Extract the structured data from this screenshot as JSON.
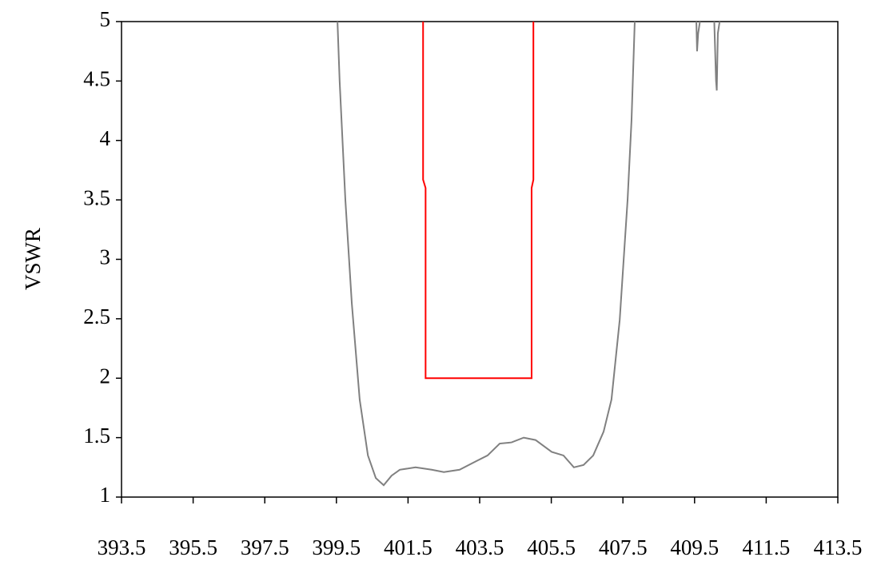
{
  "chart_data": {
    "type": "line",
    "y_label": "VSWR",
    "xlim": [
      393.5,
      413.5
    ],
    "xticks": [
      393.5,
      395.5,
      397.5,
      399.5,
      401.5,
      403.5,
      405.5,
      407.5,
      409.5,
      411.5,
      413.5
    ],
    "ylim": [
      1,
      5
    ],
    "yticks": [
      1,
      1.5,
      2,
      2.5,
      3,
      3.5,
      4,
      4.5,
      5
    ],
    "series": [
      {
        "color": "#808080",
        "x": [
          399.53,
          399.59,
          399.75,
          399.93,
          400.15,
          400.38,
          400.6,
          400.82,
          401.04,
          401.27,
          401.71,
          402.16,
          402.5,
          402.94,
          403.39,
          403.72,
          404.06,
          404.39,
          404.73,
          405.06,
          405.51,
          405.84,
          406.13,
          406.4,
          406.67,
          406.96,
          407.18,
          407.41,
          407.63,
          407.74,
          407.83,
          408.5,
          409.55,
          409.57,
          409.6,
          409.65,
          409.9,
          410.05,
          410.1,
          410.12,
          410.15,
          410.2
        ],
        "values": [
          5,
          4.5,
          3.5,
          2.63,
          1.82,
          1.35,
          1.16,
          1.1,
          1.18,
          1.23,
          1.25,
          1.23,
          1.21,
          1.23,
          1.3,
          1.35,
          1.45,
          1.46,
          1.5,
          1.48,
          1.38,
          1.35,
          1.25,
          1.27,
          1.35,
          1.55,
          1.82,
          2.49,
          3.5,
          4.17,
          5,
          null,
          5,
          4.75,
          4.9,
          5,
          null,
          5,
          4.5,
          4.42,
          4.9,
          5
        ]
      },
      {
        "color": "#ff0000",
        "x": [
          401.92,
          401.92,
          401.99,
          401.99,
          404.95,
          404.95,
          405.0,
          405.0
        ],
        "values": [
          5,
          3.67,
          3.6,
          2,
          2,
          3.6,
          3.67,
          5
        ]
      }
    ]
  }
}
